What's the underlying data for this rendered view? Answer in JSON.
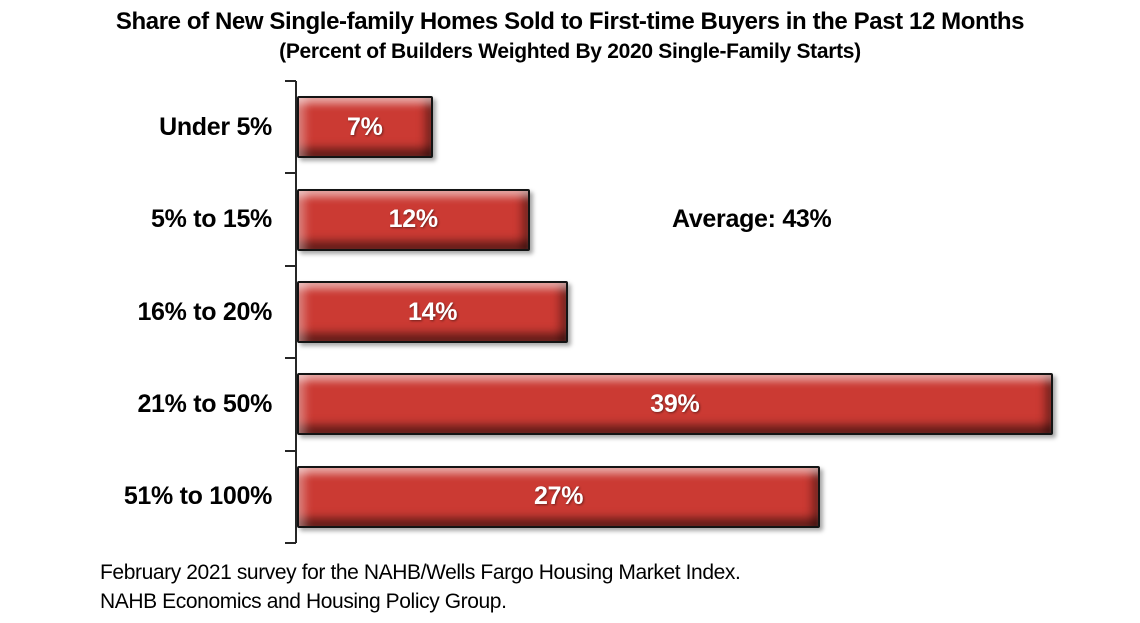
{
  "chart_data": {
    "type": "bar",
    "orientation": "horizontal",
    "title": "Share of New Single-family Homes Sold to First-time Buyers in the Past 12 Months",
    "subtitle": "(Percent of Builders Weighted By 2020 Single-Family Starts)",
    "categories": [
      "Under 5%",
      "5% to 15%",
      "16% to 20%",
      "21% to 50%",
      "51% to 100%"
    ],
    "values": [
      7,
      12,
      14,
      39,
      27
    ],
    "value_labels": [
      "7%",
      "12%",
      "14%",
      "39%",
      "27%"
    ],
    "xlim": [
      0,
      40
    ],
    "grid": false,
    "legend": "none",
    "annotation": "Average: 43%",
    "bar_color": "#cb3a33",
    "bar_border_color": "#141414",
    "value_label_color": "#ffffff",
    "axis_color": "#262626"
  },
  "footer": {
    "line1": "February 2021 survey for the NAHB/Wells Fargo Housing Market Index.",
    "line2": "NAHB Economics and Housing Policy Group."
  }
}
